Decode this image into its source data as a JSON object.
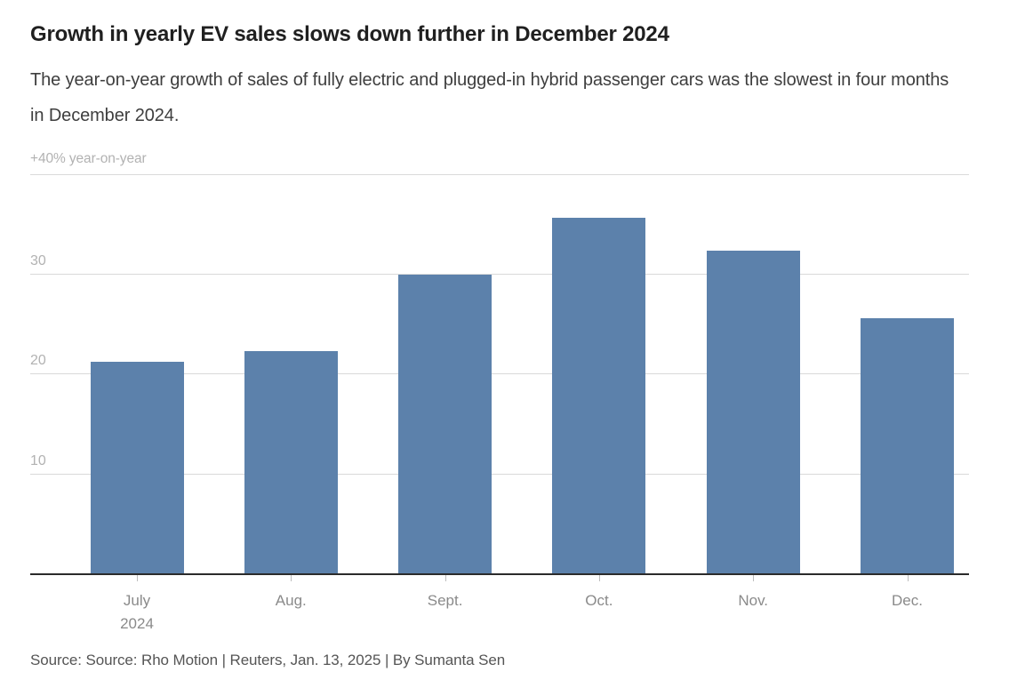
{
  "header": {
    "title": "Growth in yearly EV sales slows down further in December 2024",
    "subtitle": "The year-on-year growth of sales of fully electric and plugged-in hybrid passenger cars was the slowest in four months in December 2024."
  },
  "chart_data": {
    "type": "bar",
    "title": "Growth in yearly EV sales slows down further in December 2024",
    "categories": [
      "July",
      "Aug.",
      "Sept.",
      "Oct.",
      "Nov.",
      "Dec."
    ],
    "category_sublabels": [
      "2024",
      "",
      "",
      "",
      "",
      ""
    ],
    "values": [
      21.2,
      22.3,
      29.9,
      35.6,
      32.3,
      25.6
    ],
    "unit": "% year-on-year",
    "axis_top_label": "+40% year-on-year",
    "yticks": [
      10,
      20,
      30,
      40
    ],
    "ytick_labels": [
      "10",
      "20",
      "30"
    ],
    "ylim": [
      0,
      40
    ],
    "grid": true,
    "legend": "none",
    "colors": {
      "bar": "#5c81ab",
      "gridline": "#dadada",
      "axis_line": "#2b2b2b",
      "axis_labels": "#b2b2b2",
      "month_labels": "#8a8a8a"
    }
  },
  "footer": {
    "source": "Source: Source: Rho Motion | Reuters, Jan. 13, 2025 | By Sumanta Sen"
  }
}
